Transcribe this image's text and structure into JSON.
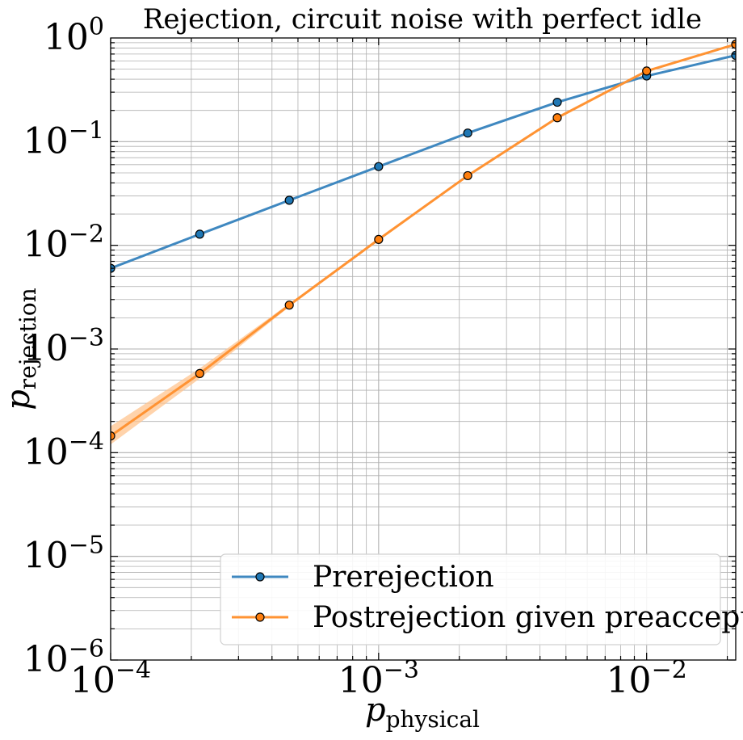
{
  "chart_data": {
    "type": "line",
    "title": "Rejection, circuit noise with perfect idle",
    "xlabel": "p",
    "xlabel_sub": "physical",
    "ylabel": "p",
    "ylabel_sub": "rejection",
    "x_scale": "log",
    "y_scale": "log",
    "xlim": [
      0.0001,
      0.0215
    ],
    "ylim": [
      1e-06,
      1
    ],
    "grid": true,
    "legend_position": "lower-right",
    "x_ticks": [
      {
        "base": "10",
        "exp": "−4",
        "value": 0.0001
      },
      {
        "base": "10",
        "exp": "−3",
        "value": 0.001
      },
      {
        "base": "10",
        "exp": "−2",
        "value": 0.01
      }
    ],
    "y_ticks": [
      {
        "base": "10",
        "exp": "0",
        "value": 1
      },
      {
        "base": "10",
        "exp": "−1",
        "value": 0.1
      },
      {
        "base": "10",
        "exp": "−2",
        "value": 0.01
      },
      {
        "base": "10",
        "exp": "−3",
        "value": 0.001
      },
      {
        "base": "10",
        "exp": "−4",
        "value": 0.0001
      },
      {
        "base": "10",
        "exp": "−5",
        "value": 1e-05
      },
      {
        "base": "10",
        "exp": "−6",
        "value": 1e-06
      }
    ],
    "x": [
      0.0001,
      0.000215,
      0.000464,
      0.001,
      0.00215,
      0.00464,
      0.01,
      0.0215
    ],
    "series": [
      {
        "name": "Prerejection",
        "color": "#3f88c0",
        "marker_fill": "#1f77b4",
        "values": [
          0.006,
          0.0128,
          0.0272,
          0.0575,
          0.121,
          0.24,
          0.43,
          0.68
        ]
      },
      {
        "name": "Postrejection given preacceptance",
        "color": "#ff9333",
        "marker_fill": "#ff7f0e",
        "band_color": "#ffc48f",
        "values": [
          0.000145,
          0.00058,
          0.00265,
          0.0114,
          0.047,
          0.17,
          0.48,
          0.87
        ],
        "lower": [
          0.00012,
          0.00052,
          0.00255,
          0.0112,
          0.0465,
          0.169,
          0.478,
          0.868
        ],
        "upper": [
          0.00018,
          0.00065,
          0.00275,
          0.0116,
          0.0475,
          0.171,
          0.482,
          0.872
        ]
      }
    ]
  }
}
